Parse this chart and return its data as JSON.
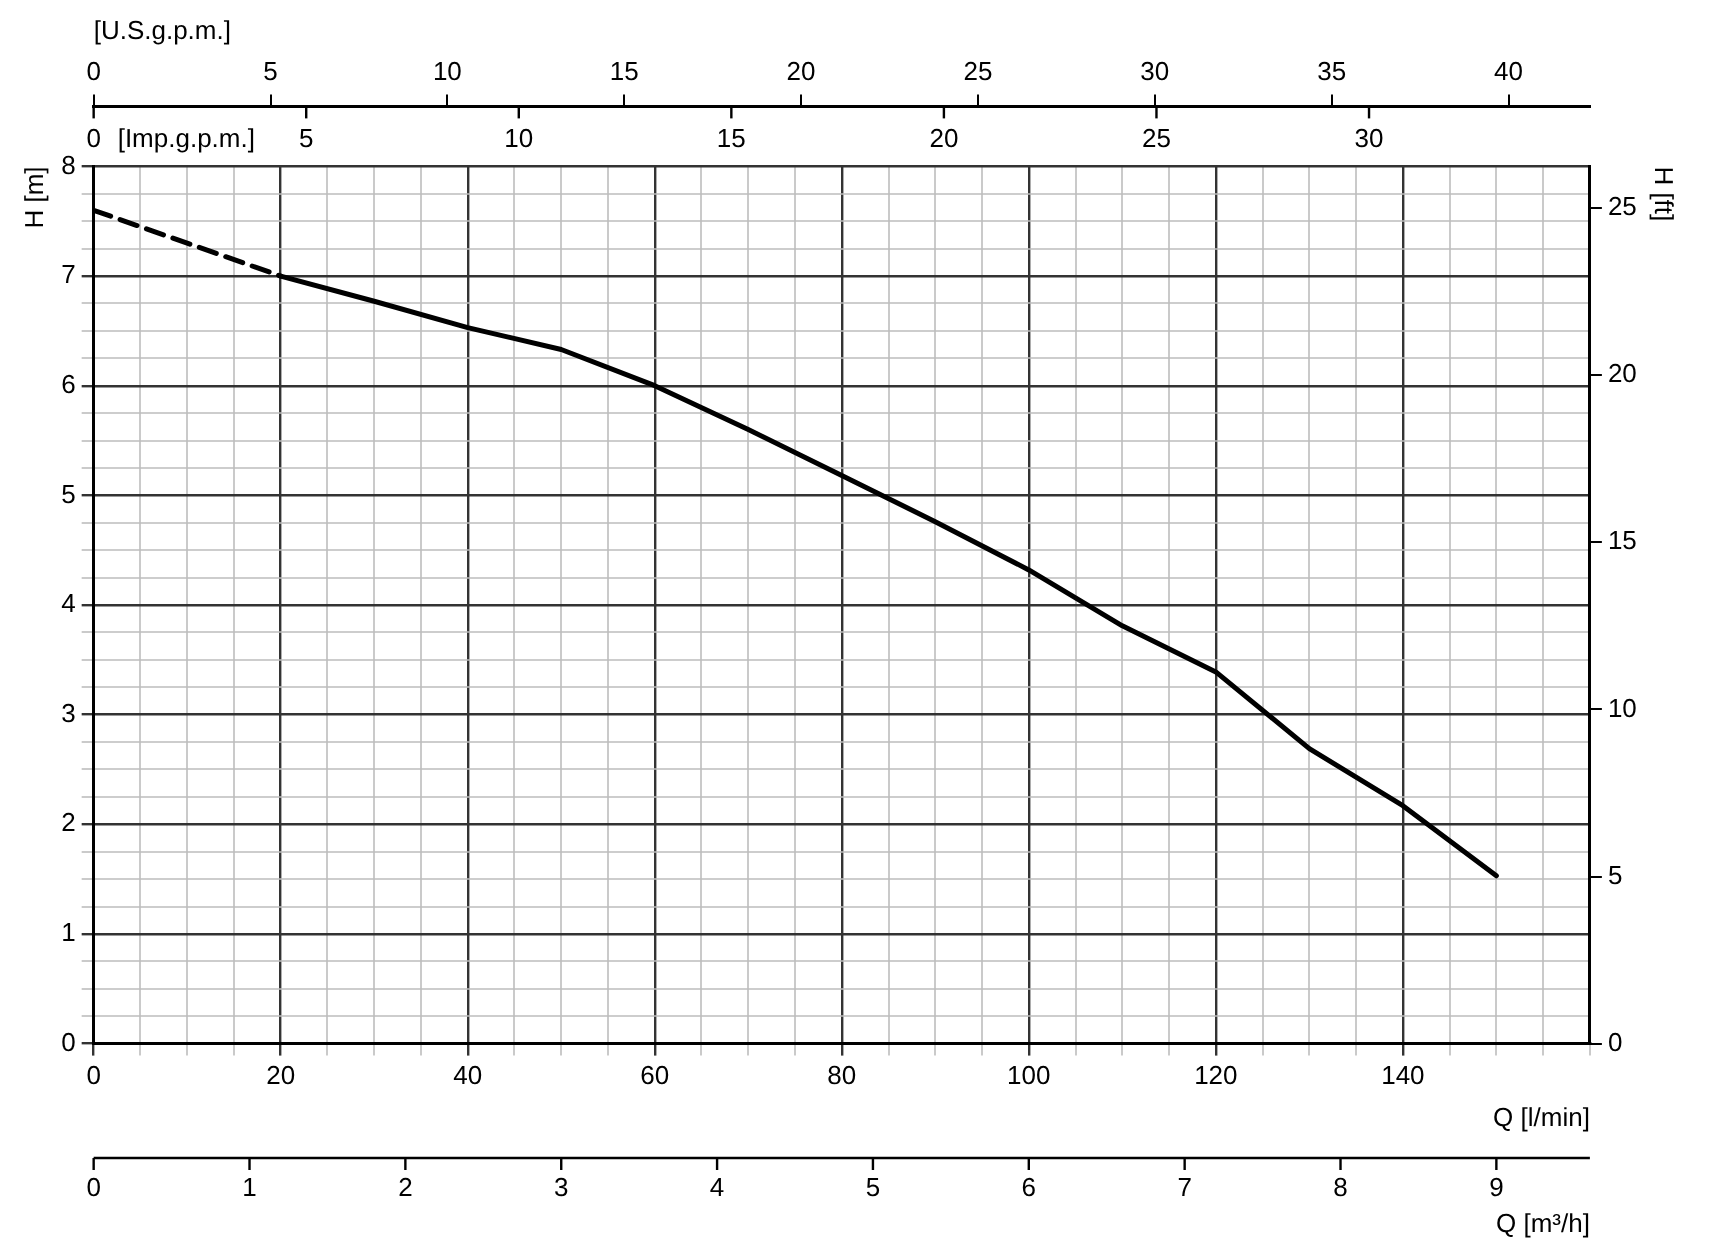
{
  "chart_data": {
    "type": "line",
    "xlabel": "Q [l/min]",
    "x2label": "[U.S.g.p.m.]",
    "ylabel": "H [m]",
    "y2label": "H [ft]",
    "xlim": [
      0,
      160
    ],
    "xticks": [
      0,
      {
        "value": 5,
        "label": null
      },
      {
        "value": 10,
        "label": null
      },
      {
        "value": 15,
        "label": null
      },
      20,
      {
        "value": 25,
        "label": null
      },
      {
        "value": 30,
        "label": null
      },
      {
        "value": 35,
        "label": null
      },
      40,
      {
        "value": 45,
        "label": null
      },
      {
        "value": 50,
        "label": null
      },
      {
        "value": 55,
        "label": null
      },
      60,
      {
        "value": 65,
        "label": null
      },
      {
        "value": 70,
        "label": null
      },
      {
        "value": 75,
        "label": null
      },
      80,
      {
        "value": 85,
        "label": null
      },
      {
        "value": 90,
        "label": null
      },
      {
        "value": 95,
        "label": null
      },
      100,
      {
        "value": 105,
        "label": null
      },
      {
        "value": 110,
        "label": null
      },
      {
        "value": 115,
        "label": null
      },
      120,
      {
        "value": 125,
        "label": null
      },
      {
        "value": 130,
        "label": null
      },
      {
        "value": 135,
        "label": null
      },
      140,
      {
        "value": 145,
        "label": null
      },
      {
        "value": 150,
        "label": null
      },
      {
        "value": 155,
        "label": null
      },
      {
        "value": 160,
        "label": null
      }
    ],
    "x2lim": [
      0,
      42.3
    ],
    "x2ticks": [
      0,
      5,
      10,
      15,
      20,
      25,
      30,
      35,
      40
    ],
    "ylim": [
      0,
      8
    ],
    "yticks": [
      0,
      {
        "value": 0.25,
        "label": null
      },
      {
        "value": 0.5,
        "label": null
      },
      {
        "value": 0.75,
        "label": null
      },
      1,
      {
        "value": 1.25,
        "label": null
      },
      {
        "value": 1.5,
        "label": null
      },
      {
        "value": 1.75,
        "label": null
      },
      2,
      {
        "value": 2.25,
        "label": null
      },
      {
        "value": 2.5,
        "label": null
      },
      {
        "value": 2.75,
        "label": null
      },
      3,
      {
        "value": 3.25,
        "label": null
      },
      {
        "value": 3.5,
        "label": null
      },
      {
        "value": 3.75,
        "label": null
      },
      4,
      {
        "value": 4.25,
        "label": null
      },
      {
        "value": 4.5,
        "label": null
      },
      {
        "value": 4.75,
        "label": null
      },
      5,
      {
        "value": 5.25,
        "label": null
      },
      {
        "value": 5.5,
        "label": null
      },
      {
        "value": 5.75,
        "label": null
      },
      6,
      {
        "value": 6.25,
        "label": null
      },
      {
        "value": 6.5,
        "label": null
      },
      {
        "value": 6.75,
        "label": null
      },
      7,
      {
        "value": 7.25,
        "label": null
      },
      {
        "value": 7.5,
        "label": null
      },
      {
        "value": 7.75,
        "label": null
      },
      8
    ],
    "y2lim": [
      0,
      26.25
    ],
    "y2ticks": [
      0,
      5,
      10,
      15,
      20,
      25
    ],
    "grid": true,
    "legend": false,
    "marker": "none",
    "annotations": [
      "[Imp.g.p.m.]",
      "0",
      "5",
      "10",
      "15",
      "20",
      "25",
      "30",
      "Q [m³/h]",
      "0",
      "1",
      "2",
      "3",
      "4",
      "5",
      "6",
      "7",
      "8",
      "9"
    ],
    "series": [
      {
        "color": "#000000",
        "line_style": "dashed",
        "x": [
          0,
          10,
          20
        ],
        "values": [
          7.6,
          7.3,
          7.0
        ]
      },
      {
        "color": "#000000",
        "line_style": "solid",
        "x": [
          20,
          30,
          40,
          50,
          60,
          70,
          80,
          90,
          100,
          110,
          120,
          130,
          140,
          150
        ],
        "values": [
          7.0,
          6.77,
          6.53,
          6.33,
          6.0,
          5.6,
          5.18,
          4.76,
          4.32,
          3.81,
          3.39,
          2.69,
          2.17,
          1.53
        ]
      }
    ]
  }
}
